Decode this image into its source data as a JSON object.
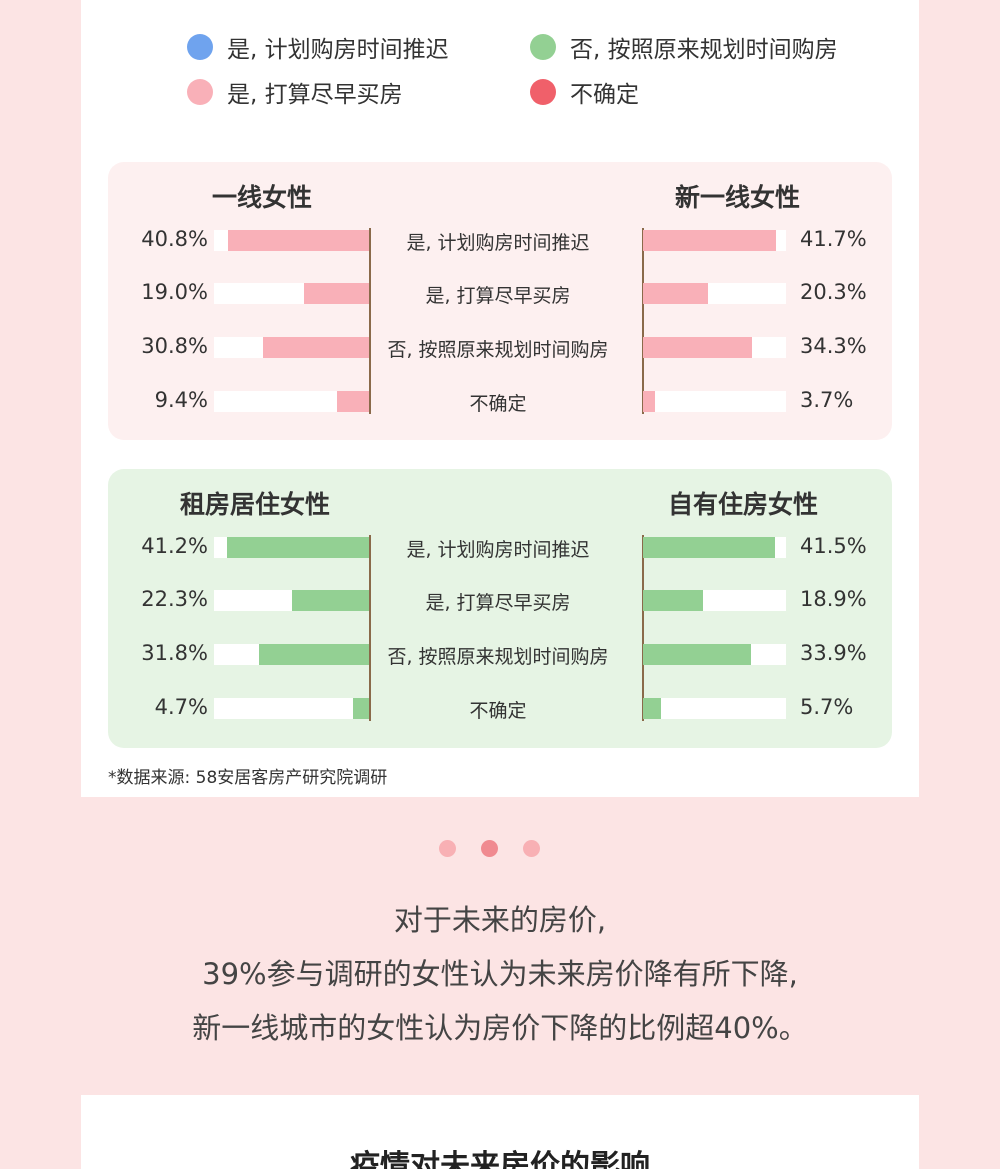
{
  "legend": [
    {
      "label": "是, 计划购房时间推迟",
      "color": "#6fa3ee"
    },
    {
      "label": "否, 按照原来规划时间购房",
      "color": "#93d093"
    },
    {
      "label": "是, 打算尽早买房",
      "color": "#f9b0b8"
    },
    {
      "label": "不确定",
      "color": "#f0606a"
    }
  ],
  "categories": [
    "是, 计划购房时间推迟",
    "是, 打算尽早买房",
    "否, 按照原来规划时间购房",
    "不确定"
  ],
  "chart_data": [
    {
      "type": "bar",
      "layout": "butterfly",
      "bar_color": "#f9b0b8",
      "categories": [
        "是, 计划购房时间推迟",
        "是, 打算尽早买房",
        "否, 按照原来规划时间购房",
        "不确定"
      ],
      "series": [
        {
          "name": "一线女性",
          "values": [
            40.8,
            19.0,
            30.8,
            9.4
          ],
          "labels": [
            "40.8%",
            "19.0%",
            "30.8%",
            "9.4%"
          ]
        },
        {
          "name": "新一线女性",
          "values": [
            41.7,
            20.3,
            34.3,
            3.7
          ],
          "labels": [
            "41.7%",
            "20.3%",
            "34.3%",
            "3.7%"
          ]
        }
      ],
      "ylim": [
        0,
        45
      ]
    },
    {
      "type": "bar",
      "layout": "butterfly",
      "bar_color": "#93d093",
      "categories": [
        "是, 计划购房时间推迟",
        "是, 打算尽早买房",
        "否, 按照原来规划时间购房",
        "不确定"
      ],
      "series": [
        {
          "name": "租房居住女性",
          "values": [
            41.2,
            22.3,
            31.8,
            4.7
          ],
          "labels": [
            "41.2%",
            "22.3%",
            "31.8%",
            "4.7%"
          ]
        },
        {
          "name": "自有住房女性",
          "values": [
            41.5,
            18.9,
            33.9,
            5.7
          ],
          "labels": [
            "41.5%",
            "18.9%",
            "33.9%",
            "5.7%"
          ]
        }
      ],
      "ylim": [
        0,
        45
      ]
    }
  ],
  "source_note": "*数据来源: 58安居客房产研究院调研",
  "page_dots": [
    "#f8b0b4",
    "#f08a90",
    "#f8b0b4"
  ],
  "body_text": [
    "对于未来的房价,",
    "39%参与调研的女性认为未来房价降有所下降,",
    "新一线城市的女性认为房价下降的比例超40%。"
  ],
  "next_section_title": "疫情对未来房价的影响"
}
